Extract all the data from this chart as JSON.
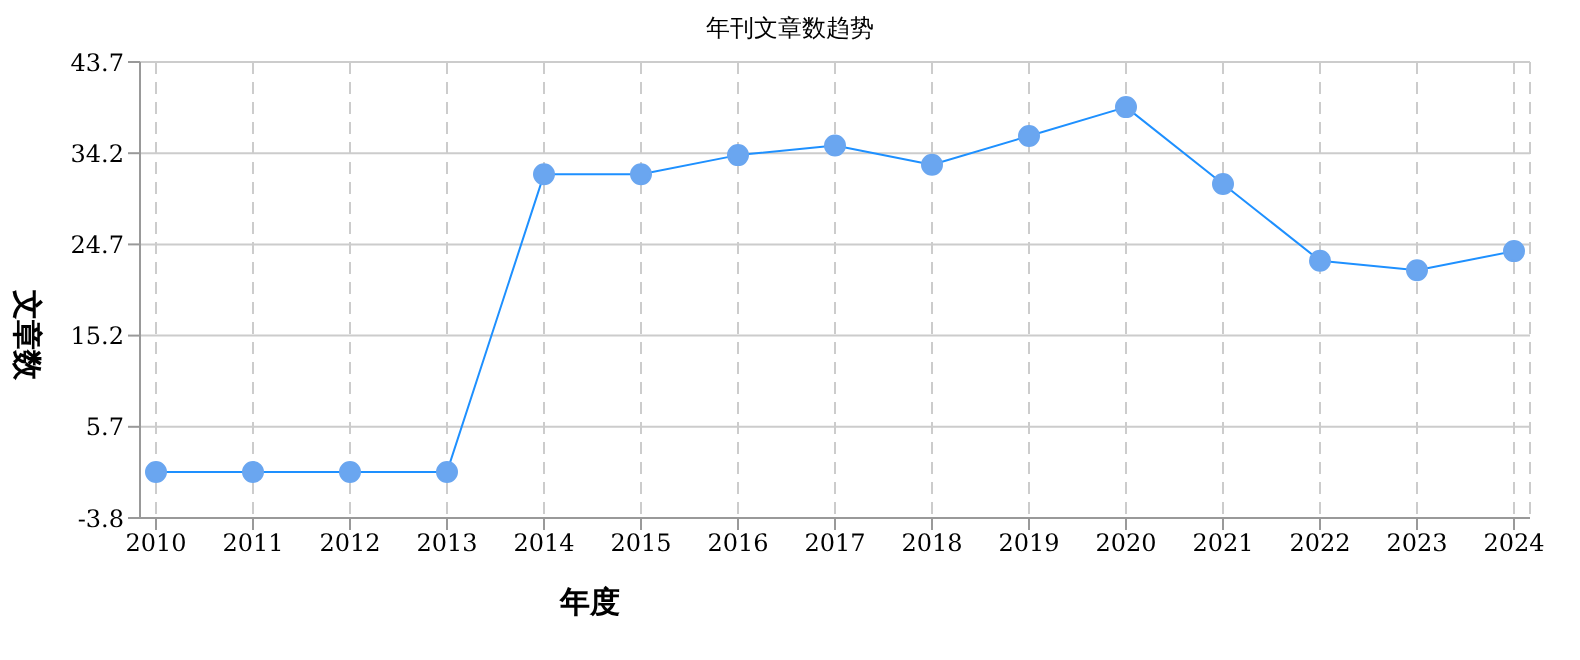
{
  "chart_data": {
    "type": "line",
    "title": "年刊文章数趋势",
    "xlabel": "年度",
    "ylabel": "文章数",
    "categories": [
      "2010",
      "2011",
      "2012",
      "2013",
      "2014",
      "2015",
      "2016",
      "2017",
      "2018",
      "2019",
      "2020",
      "2021",
      "2022",
      "2023",
      "2024"
    ],
    "series": [
      {
        "color": "#1e90ff",
        "values": [
          1,
          1,
          1,
          1,
          32,
          32,
          34,
          35,
          33,
          36,
          39,
          31,
          23,
          22,
          24
        ]
      }
    ],
    "ylim": [
      -3.8,
      43.7
    ],
    "yticks": [
      -3.8,
      5.7,
      15.2,
      24.7,
      34.2,
      43.7
    ],
    "grid": true,
    "legend": false,
    "marker": "circle",
    "line_style": "solid"
  }
}
